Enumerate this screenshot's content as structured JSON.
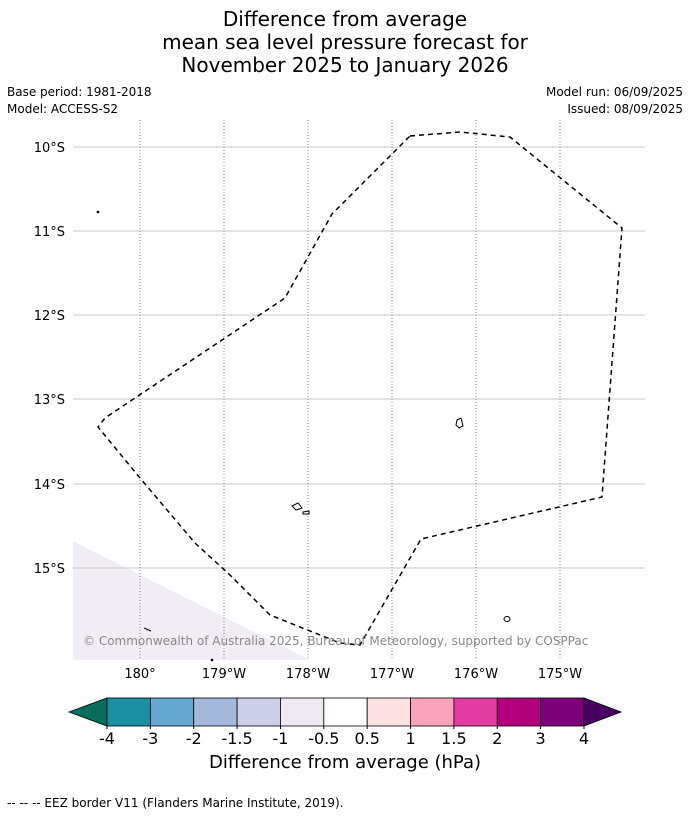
{
  "title": {
    "line1": "Difference from average",
    "line2": "mean sea level pressure forecast for",
    "line3": "November 2025 to January 2026"
  },
  "meta": {
    "base_period": "Base period: 1981-2018",
    "model": "Model: ACCESS-S2",
    "model_run": "Model run: 06/09/2025",
    "issued": "Issued: 08/09/2025"
  },
  "map": {
    "lat_labels": [
      "10°S",
      "11°S",
      "12°S",
      "13°S",
      "14°S",
      "15°S"
    ],
    "lon_labels": [
      "180°",
      "179°W",
      "178°W",
      "177°W",
      "176°W",
      "175°W"
    ],
    "copyright": "© Commonwealth of Australia 2025, Bureau of Meteorology, supported by COSPPac",
    "shading_color": "#f2edf5",
    "eez_color": "#000000"
  },
  "colorbar": {
    "ticks": [
      "-4",
      "-3",
      "-2",
      "-1.5",
      "-1",
      "-0.5",
      "0.5",
      "1",
      "1.5",
      "2",
      "3",
      "4"
    ],
    "colors": [
      "#0b6d5c",
      "#1c8fa2",
      "#64a7d0",
      "#a3b8da",
      "#cccde6",
      "#efe9f2",
      "#ffffff",
      "#fde0e1",
      "#f9a2bc",
      "#e23ba1",
      "#b2007c",
      "#7b0079",
      "#480061"
    ],
    "label": "Difference from average (hPa)"
  },
  "footer": "--  --  -- EEZ border V11 (Flanders Marine Institute, 2019)."
}
